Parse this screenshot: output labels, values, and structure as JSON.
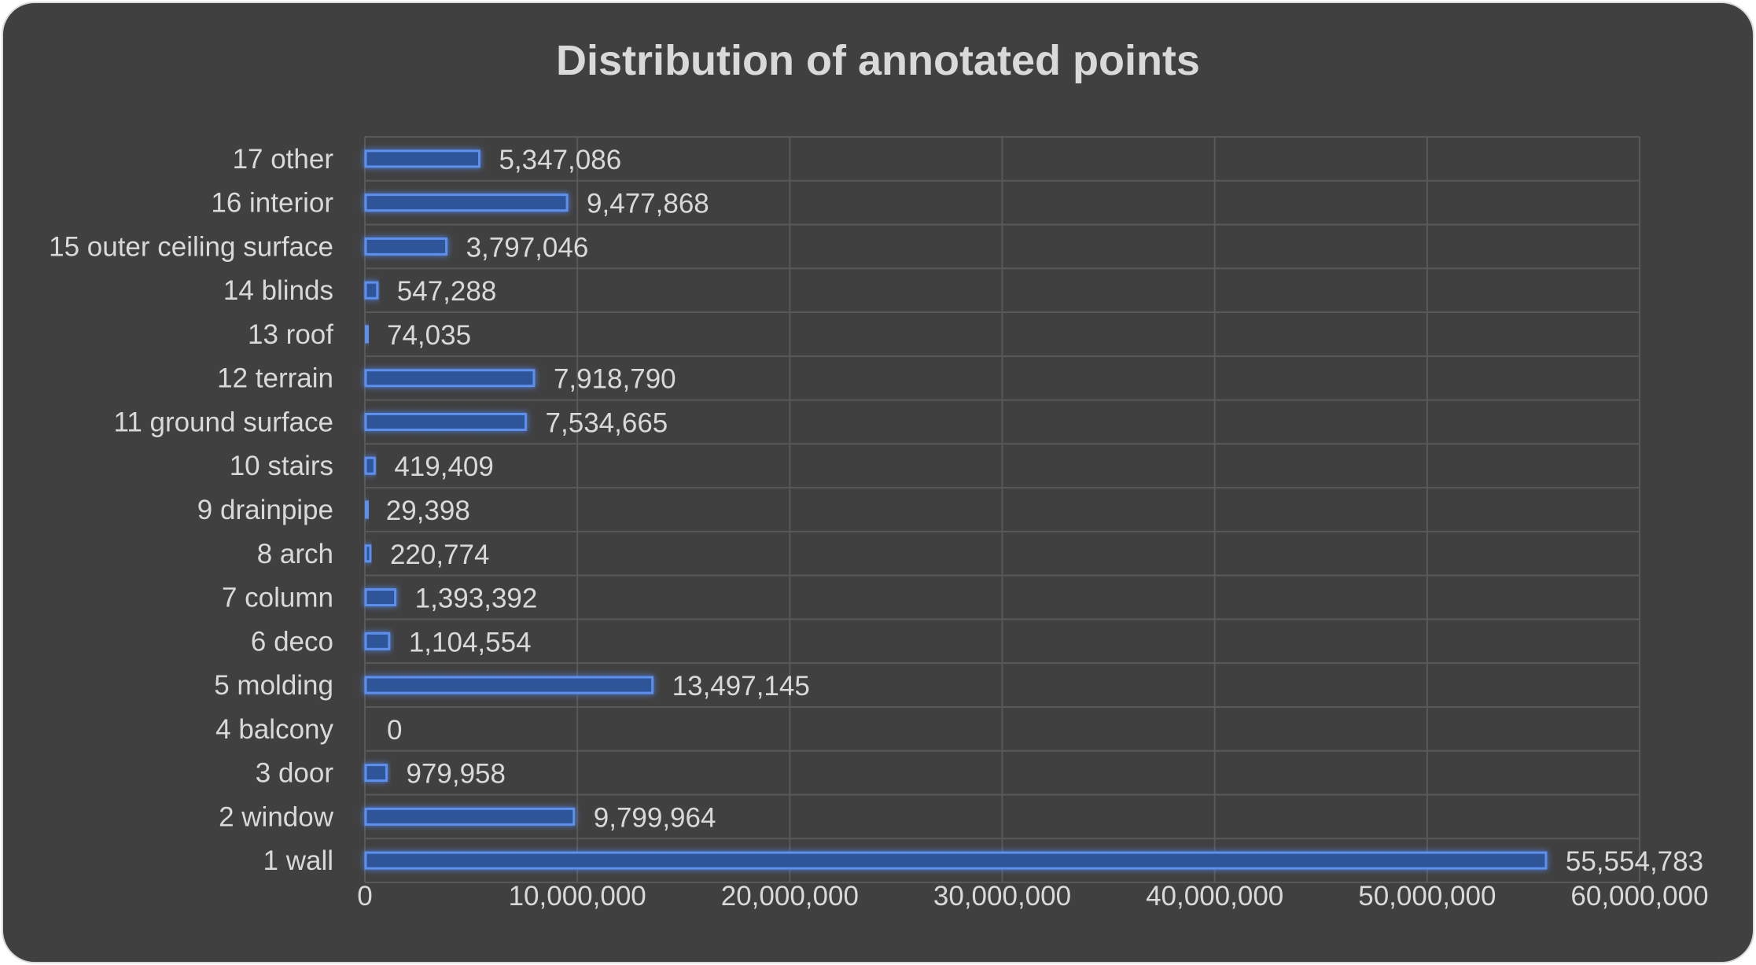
{
  "colors": {
    "background": "#404040",
    "border": "#d9d9d9",
    "bar_fill": "#2f5597",
    "bar_stroke": "#5b8ff0",
    "bar_glow": "#4472c4",
    "gridline": "#595959",
    "text": "#d9d9d9"
  },
  "chart_data": {
    "type": "bar",
    "orientation": "horizontal",
    "title": "Distribution of annotated points",
    "xlabel": "",
    "ylabel": "",
    "xlim": [
      0,
      60000000
    ],
    "x_ticks": [
      0,
      10000000,
      20000000,
      30000000,
      40000000,
      50000000,
      60000000
    ],
    "x_tick_labels": [
      "0",
      "10,000,000",
      "20,000,000",
      "30,000,000",
      "40,000,000",
      "50,000,000",
      "60,000,000"
    ],
    "grid": true,
    "legend": "none",
    "categories": [
      "1 wall",
      "2 window",
      "3 door",
      "4 balcony",
      "5 molding",
      "6 deco",
      "7 column",
      "8 arch",
      "9 drainpipe",
      "10 stairs",
      "11 ground surface",
      "12 terrain",
      "13 roof",
      "14 blinds",
      "15 outer ceiling surface",
      "16 interior",
      "17 other"
    ],
    "values": [
      55554783,
      9799964,
      979958,
      0,
      13497145,
      1104554,
      1393392,
      220774,
      29398,
      419409,
      7534665,
      7918790,
      74035,
      547288,
      3797046,
      9477868,
      5347086
    ],
    "data_labels": [
      "55,554,783",
      "9,799,964",
      "979,958",
      "0",
      "13,497,145",
      "1,104,554",
      "1,393,392",
      "220,774",
      "29,398",
      "419,409",
      "7,534,665",
      "7,918,790",
      "74,035",
      "547,288",
      "3,797,046",
      "9,477,868",
      "5,347,086"
    ]
  }
}
